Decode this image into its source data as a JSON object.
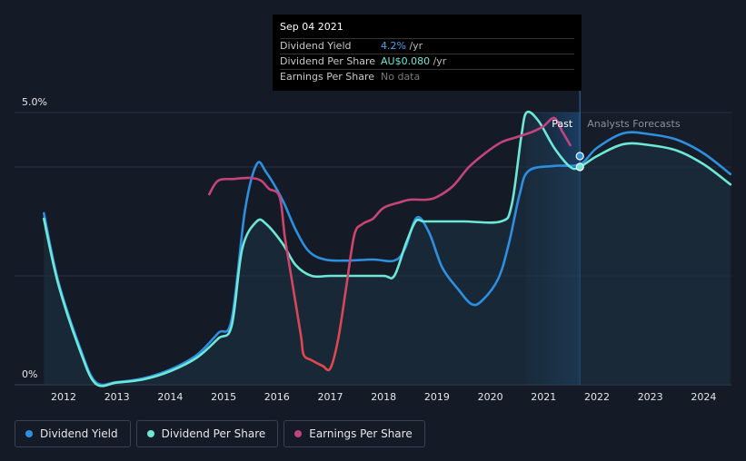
{
  "tooltip": {
    "date": "Sep 04 2021",
    "rows": [
      {
        "label": "Dividend Yield",
        "value": "4.2%",
        "unit": " /yr"
      },
      {
        "label": "Dividend Per Share",
        "value": "AU$0.080",
        "unit": " /yr"
      },
      {
        "label": "Earnings Per Share",
        "value": "No data",
        "unit": ""
      }
    ]
  },
  "legend": [
    {
      "label": "Dividend Yield",
      "color": "#2d8fe0"
    },
    {
      "label": "Dividend Per Share",
      "color": "#6ee8d6"
    },
    {
      "label": "Earnings Per Share",
      "color": "#c2437e"
    }
  ],
  "chart_data": {
    "type": "line",
    "y_axis_labels": [
      "5.0%",
      "0%"
    ],
    "ylim": [
      0,
      5.0
    ],
    "xlim": [
      2011.5,
      2024.5
    ],
    "x_ticks": [
      "2012",
      "2013",
      "2014",
      "2015",
      "2016",
      "2017",
      "2018",
      "2019",
      "2020",
      "2021",
      "2022",
      "2023",
      "2024"
    ],
    "past_label": "Past",
    "forecast_label": "Analysts Forecasts",
    "forecast_start": 2021.68,
    "forecast_shade_start": 2020.68,
    "grid": true,
    "colors": {
      "yield": "#2d8fe0",
      "dps": "#6ee8d6",
      "eps": "#c2437e",
      "eps_low": "#e0484b"
    },
    "series": [
      {
        "name": "Dividend Yield",
        "points": [
          [
            2011.63,
            3.15
          ],
          [
            2011.9,
            1.9
          ],
          [
            2012.3,
            0.7
          ],
          [
            2012.6,
            0.05
          ],
          [
            2013.0,
            0.05
          ],
          [
            2013.5,
            0.12
          ],
          [
            2014.0,
            0.28
          ],
          [
            2014.5,
            0.55
          ],
          [
            2014.9,
            0.95
          ],
          [
            2015.15,
            1.2
          ],
          [
            2015.4,
            3.2
          ],
          [
            2015.62,
            4.05
          ],
          [
            2015.8,
            3.9
          ],
          [
            2016.1,
            3.4
          ],
          [
            2016.35,
            2.85
          ],
          [
            2016.6,
            2.45
          ],
          [
            2016.9,
            2.3
          ],
          [
            2017.3,
            2.28
          ],
          [
            2017.8,
            2.3
          ],
          [
            2018.2,
            2.28
          ],
          [
            2018.4,
            2.5
          ],
          [
            2018.62,
            3.07
          ],
          [
            2018.85,
            2.8
          ],
          [
            2019.1,
            2.15
          ],
          [
            2019.4,
            1.75
          ],
          [
            2019.65,
            1.48
          ],
          [
            2019.85,
            1.55
          ],
          [
            2020.15,
            1.95
          ],
          [
            2020.35,
            2.6
          ],
          [
            2020.55,
            3.5
          ],
          [
            2020.72,
            3.93
          ],
          [
            2021.2,
            4.02
          ],
          [
            2021.68,
            4.05
          ],
          [
            2022.0,
            4.35
          ],
          [
            2022.5,
            4.62
          ],
          [
            2023.0,
            4.6
          ],
          [
            2023.5,
            4.5
          ],
          [
            2024.0,
            4.25
          ],
          [
            2024.5,
            3.87
          ]
        ]
      },
      {
        "name": "Dividend Per Share",
        "points": [
          [
            2011.63,
            3.05
          ],
          [
            2011.9,
            1.85
          ],
          [
            2012.3,
            0.65
          ],
          [
            2012.6,
            0.02
          ],
          [
            2013.0,
            0.04
          ],
          [
            2013.5,
            0.1
          ],
          [
            2014.0,
            0.25
          ],
          [
            2014.5,
            0.5
          ],
          [
            2014.9,
            0.85
          ],
          [
            2015.15,
            1.08
          ],
          [
            2015.35,
            2.5
          ],
          [
            2015.62,
            3.0
          ],
          [
            2015.8,
            2.95
          ],
          [
            2016.1,
            2.6
          ],
          [
            2016.35,
            2.2
          ],
          [
            2016.65,
            2.0
          ],
          [
            2017.0,
            2.0
          ],
          [
            2017.5,
            2.0
          ],
          [
            2018.0,
            2.0
          ],
          [
            2018.2,
            2.0
          ],
          [
            2018.42,
            2.6
          ],
          [
            2018.6,
            3.0
          ],
          [
            2018.75,
            3.0
          ],
          [
            2019.0,
            3.0
          ],
          [
            2019.5,
            3.0
          ],
          [
            2020.2,
            3.0
          ],
          [
            2020.4,
            3.3
          ],
          [
            2020.58,
            4.55
          ],
          [
            2020.68,
            5.0
          ],
          [
            2020.9,
            4.85
          ],
          [
            2021.2,
            4.35
          ],
          [
            2021.5,
            4.0
          ],
          [
            2021.68,
            4.0
          ],
          [
            2022.0,
            4.2
          ],
          [
            2022.5,
            4.42
          ],
          [
            2023.0,
            4.4
          ],
          [
            2023.5,
            4.3
          ],
          [
            2024.0,
            4.05
          ],
          [
            2024.5,
            3.68
          ]
        ]
      },
      {
        "name": "Earnings Per Share",
        "points": [
          [
            2014.73,
            3.5
          ],
          [
            2014.9,
            3.75
          ],
          [
            2015.2,
            3.78
          ],
          [
            2015.5,
            3.8
          ],
          [
            2015.7,
            3.75
          ],
          [
            2015.85,
            3.6
          ],
          [
            2016.05,
            3.45
          ],
          [
            2016.15,
            2.7
          ],
          [
            2016.3,
            1.8
          ],
          [
            2016.45,
            0.9
          ],
          [
            2016.5,
            0.55
          ],
          [
            2016.65,
            0.45
          ],
          [
            2016.85,
            0.35
          ],
          [
            2017.0,
            0.3
          ],
          [
            2017.15,
            0.85
          ],
          [
            2017.3,
            1.8
          ],
          [
            2017.45,
            2.75
          ],
          [
            2017.6,
            2.95
          ],
          [
            2017.8,
            3.05
          ],
          [
            2018.0,
            3.25
          ],
          [
            2018.3,
            3.35
          ],
          [
            2018.5,
            3.4
          ],
          [
            2018.8,
            3.4
          ],
          [
            2019.0,
            3.45
          ],
          [
            2019.3,
            3.65
          ],
          [
            2019.6,
            4.0
          ],
          [
            2019.9,
            4.25
          ],
          [
            2020.2,
            4.45
          ],
          [
            2020.5,
            4.55
          ],
          [
            2020.8,
            4.65
          ],
          [
            2021.0,
            4.75
          ],
          [
            2021.2,
            4.9
          ],
          [
            2021.35,
            4.65
          ],
          [
            2021.5,
            4.4
          ]
        ]
      }
    ],
    "highlight_points": [
      [
        2021.68,
        4.2
      ],
      [
        2021.68,
        4.0
      ]
    ]
  }
}
